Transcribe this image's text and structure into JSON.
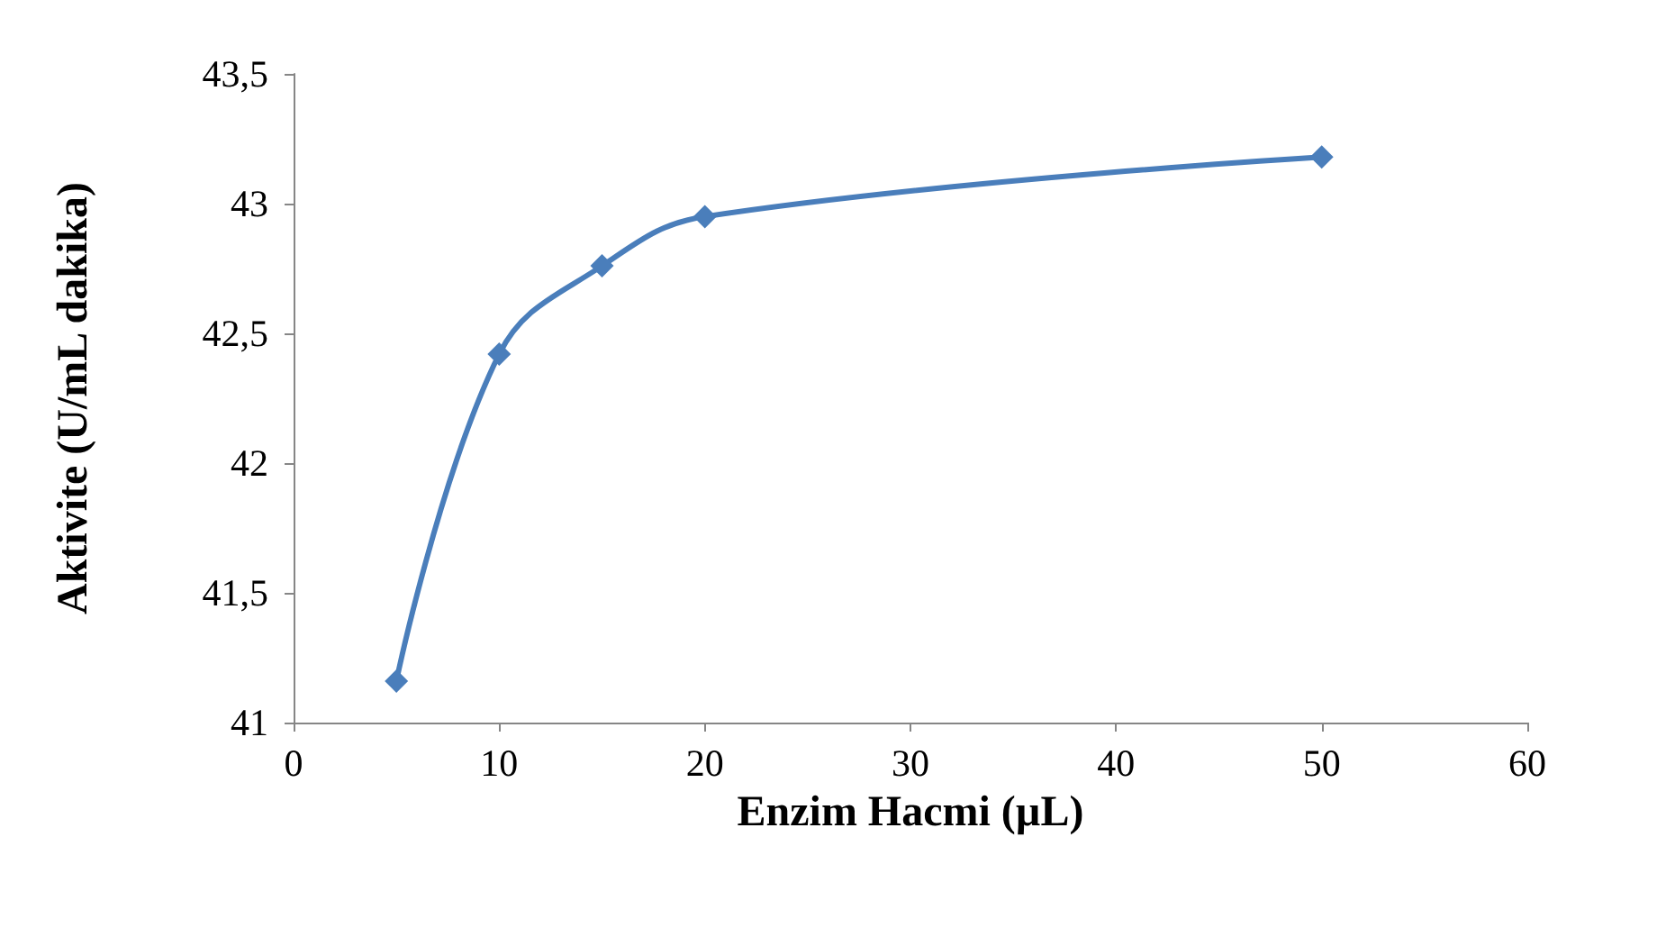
{
  "chart_data": {
    "type": "line",
    "xlabel": "Enzim Hacmi (µL)",
    "ylabel": "Aktivite (U/mL dakika)",
    "x": [
      5,
      10,
      15,
      20,
      50
    ],
    "series": [
      {
        "color": "#4a7ebb",
        "values": [
          41.16,
          42.42,
          42.76,
          42.95,
          43.18
        ]
      }
    ],
    "xlim": [
      0,
      60
    ],
    "xticks": [
      0,
      10,
      20,
      30,
      40,
      50,
      60
    ],
    "ylim": [
      41,
      43.5
    ],
    "yticks": [
      41,
      {
        "value": 41.5,
        "label": "41,5"
      },
      42,
      {
        "value": 42.5,
        "label": "42,5"
      },
      43,
      {
        "value": 43.5,
        "label": "43,5"
      }
    ],
    "grid": false,
    "marker": "diamond",
    "line_style": "solid"
  }
}
